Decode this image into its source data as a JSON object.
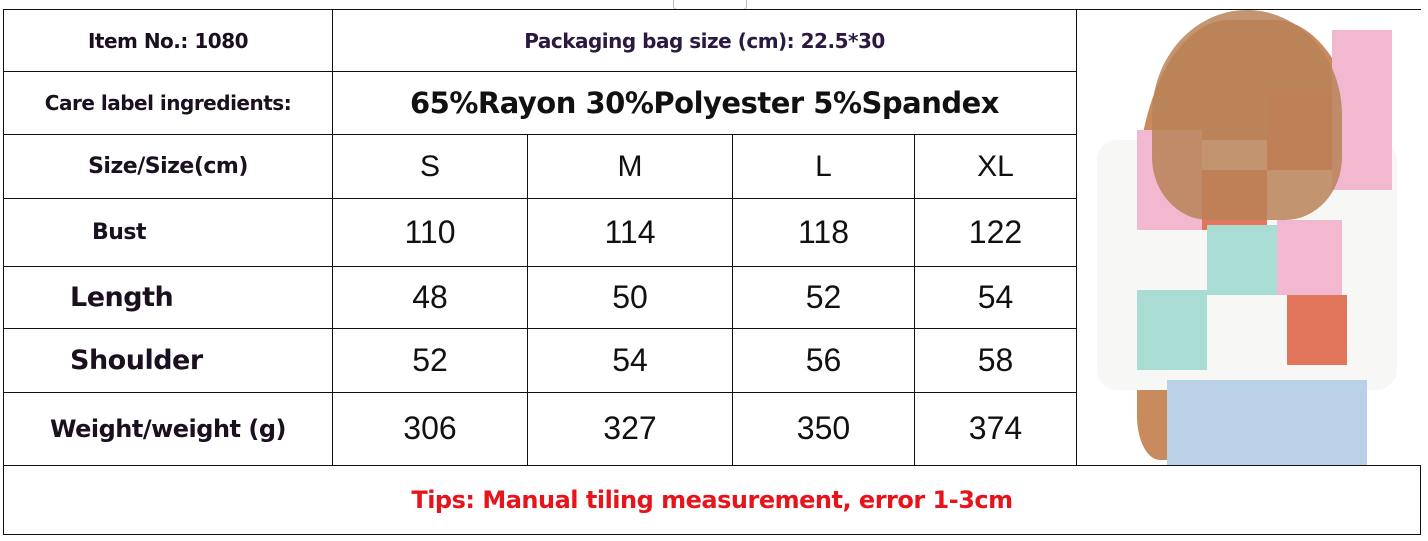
{
  "header": {
    "item_no": "Item No.: 1080",
    "packaging": "Packaging bag size (cm): 22.5*30",
    "care_label": "Care label ingredients:",
    "ingredients": "65%Rayon 30%Polyester 5%Spandex"
  },
  "size_table": {
    "header_label": "Size/Size(cm)",
    "sizes": [
      "S",
      "M",
      "L",
      "XL"
    ],
    "rows": [
      {
        "label": "Bust",
        "values": [
          "110",
          "114",
          "118",
          "122"
        ]
      },
      {
        "label": "Length",
        "values": [
          "48",
          "50",
          "52",
          "54"
        ]
      },
      {
        "label": "Shoulder",
        "values": [
          "52",
          "54",
          "56",
          "58"
        ]
      },
      {
        "label": "Weight/weight (g)",
        "values": [
          "306",
          "327",
          "350",
          "374"
        ]
      }
    ]
  },
  "tips": "Tips: Manual tiling measurement, error 1-3cm",
  "photo": {
    "subject": "woman wearing checkered knit short-sleeve top",
    "colors": [
      "#e2765a",
      "#f2b8cf",
      "#a9dcd3",
      "#f7f7f5"
    ]
  }
}
